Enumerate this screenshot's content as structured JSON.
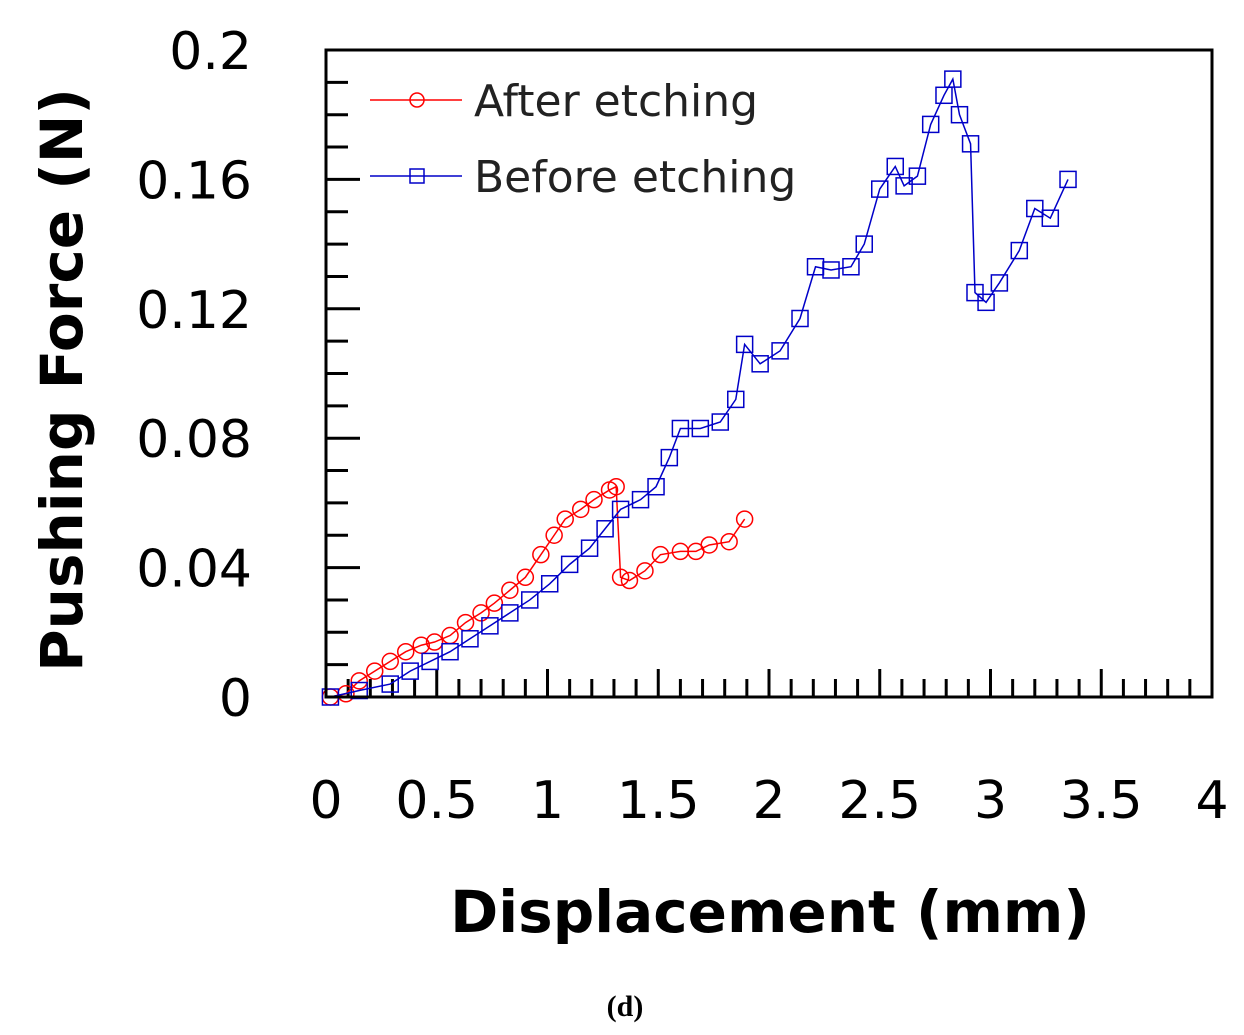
{
  "chart_data": {
    "type": "scatter",
    "title": "",
    "xlabel": "Displacement (mm)",
    "ylabel": "Pushing Force (N)",
    "xlim": [
      0,
      4
    ],
    "ylim": [
      0,
      0.2
    ],
    "xticks": [
      "0",
      "0.5",
      "1",
      "1.5",
      "2",
      "2.5",
      "3",
      "3.5",
      "4"
    ],
    "yticks": [
      "0",
      "0.04",
      "0.08",
      "0.12",
      "0.16",
      "0.2"
    ],
    "grid": false,
    "legend_position": "top-left",
    "caption": "(d)",
    "series": [
      {
        "name": "After etching",
        "color": "#ff0000",
        "marker": "circle",
        "x": [
          0.02,
          0.09,
          0.15,
          0.22,
          0.29,
          0.36,
          0.43,
          0.49,
          0.56,
          0.63,
          0.7,
          0.76,
          0.83,
          0.9,
          0.97,
          1.03,
          1.08,
          1.15,
          1.21,
          1.28,
          1.31,
          1.33,
          1.37,
          1.44,
          1.51,
          1.6,
          1.67,
          1.73,
          1.82,
          1.89
        ],
        "y": [
          0,
          0.001,
          0.005,
          0.008,
          0.011,
          0.014,
          0.016,
          0.017,
          0.019,
          0.023,
          0.026,
          0.029,
          0.033,
          0.037,
          0.044,
          0.05,
          0.055,
          0.058,
          0.061,
          0.064,
          0.065,
          0.037,
          0.036,
          0.039,
          0.044,
          0.045,
          0.045,
          0.047,
          0.048,
          0.055
        ]
      },
      {
        "name": "Before etching",
        "color": "#0000c8",
        "marker": "square",
        "x": [
          0.02,
          0.15,
          0.29,
          0.38,
          0.47,
          0.56,
          0.65,
          0.74,
          0.83,
          0.92,
          1.01,
          1.1,
          1.19,
          1.26,
          1.33,
          1.42,
          1.49,
          1.55,
          1.6,
          1.69,
          1.78,
          1.85,
          1.89,
          1.96,
          2.05,
          2.14,
          2.21,
          2.28,
          2.37,
          2.43,
          2.5,
          2.57,
          2.61,
          2.67,
          2.73,
          2.79,
          2.83,
          2.86,
          2.91,
          2.93,
          2.98,
          3.04,
          3.13,
          3.2,
          3.27,
          3.35
        ],
        "y": [
          0,
          0.002,
          0.004,
          0.008,
          0.011,
          0.014,
          0.018,
          0.022,
          0.026,
          0.03,
          0.035,
          0.041,
          0.046,
          0.052,
          0.058,
          0.061,
          0.065,
          0.074,
          0.083,
          0.083,
          0.085,
          0.092,
          0.109,
          0.103,
          0.107,
          0.117,
          0.133,
          0.132,
          0.133,
          0.14,
          0.157,
          0.164,
          0.158,
          0.161,
          0.177,
          0.186,
          0.191,
          0.18,
          0.171,
          0.125,
          0.122,
          0.128,
          0.138,
          0.151,
          0.148,
          0.16
        ]
      }
    ]
  }
}
